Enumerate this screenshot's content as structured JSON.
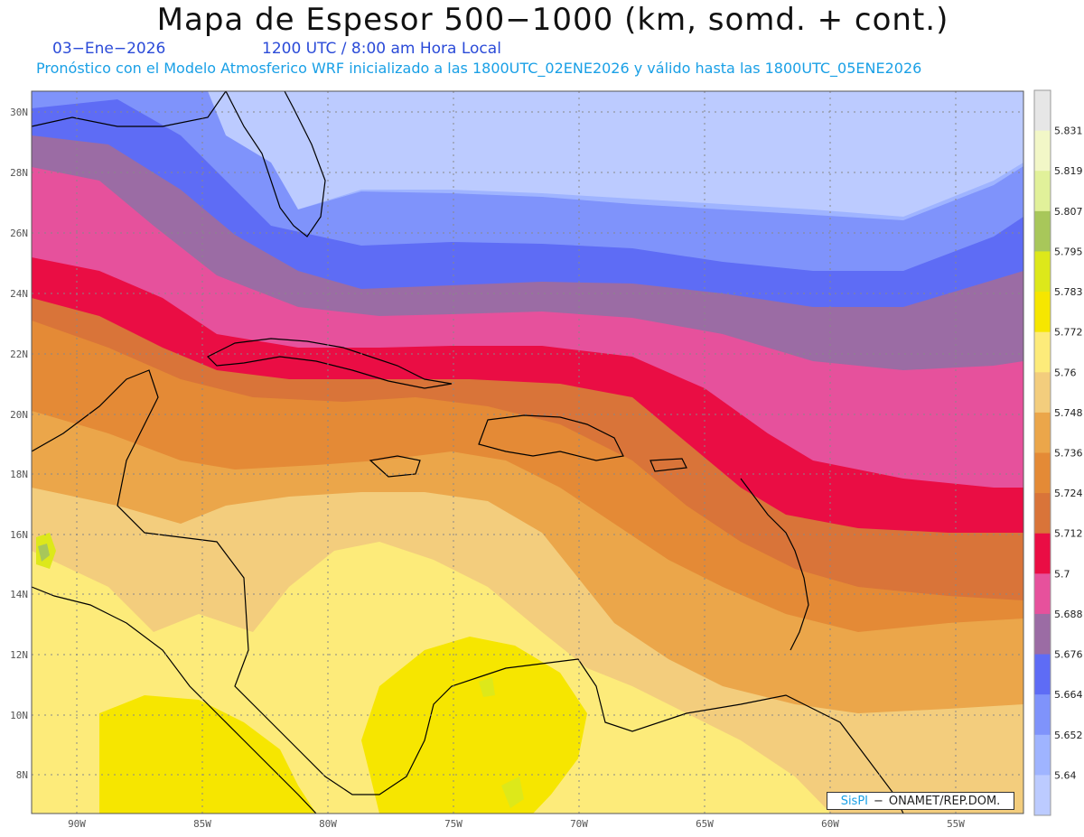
{
  "header": {
    "title": "Mapa de Espesor 500−1000 (km, somd. + cont.)",
    "date": "03−Ene−2026",
    "time": "1200 UTC / 8:00 am Hora Local",
    "description": "Pronóstico con el Modelo Atmosferico WRF inicializado a las 1800UTC_02ENE2026 y válido hasta las  1800UTC_05ENE2026"
  },
  "credit": {
    "brand": "SisPI",
    "separator": "−",
    "org": "ONAMET/REP.DOM."
  },
  "map": {
    "lon_range": [
      -92,
      -52.5
    ],
    "lat_range": [
      6.7,
      30.7
    ],
    "lon_ticks": [
      "90W",
      "85W",
      "80W",
      "75W",
      "70W",
      "65W",
      "60W",
      "55W"
    ],
    "lat_ticks": [
      "30N",
      "28N",
      "26N",
      "24N",
      "22N",
      "20N",
      "18N",
      "16N",
      "14N",
      "12N",
      "10N",
      "8N"
    ]
  },
  "colorbar": {
    "labels": [
      "5.831",
      "5.819",
      "5.807",
      "5.795",
      "5.783",
      "5.772",
      "5.76",
      "5.748",
      "5.736",
      "5.724",
      "5.712",
      "5.7",
      "5.688",
      "5.676",
      "5.664",
      "5.652",
      "5.64"
    ],
    "colors": [
      "#e6e6e6",
      "#f2f7c7",
      "#e1f19a",
      "#a8c75a",
      "#dde81a",
      "#f6e600",
      "#fdeb7a",
      "#f3cd7d",
      "#eba64a",
      "#e48a36",
      "#d97439",
      "#ea0d44",
      "#e6519c",
      "#9b6ca4",
      "#5e6cf5",
      "#7f93fb",
      "#9fb4ff",
      "#bccbff"
    ]
  }
}
